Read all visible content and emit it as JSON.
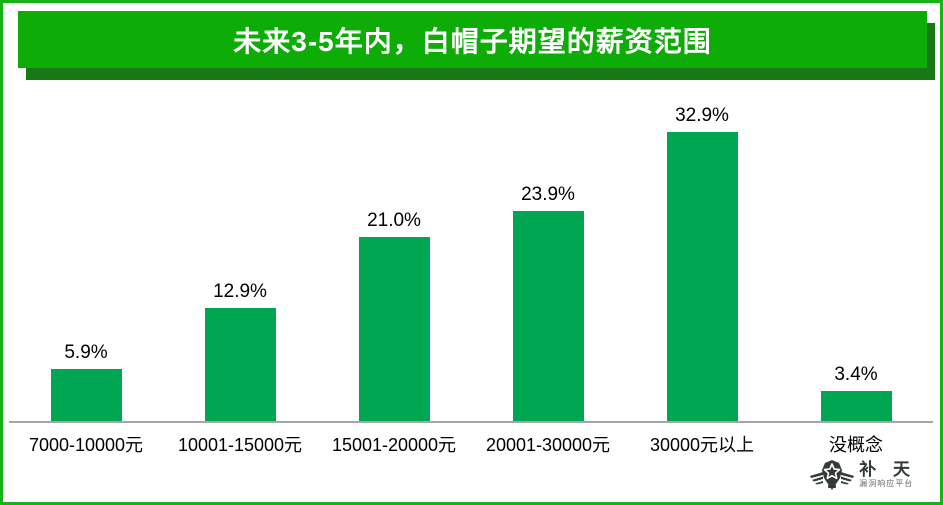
{
  "title": {
    "text": "未来3-5年内，白帽子期望的薪资范围"
  },
  "chart_data": {
    "type": "bar",
    "title": "未来3-5年内，白帽子期望的薪资范围",
    "categories": [
      "7000-10000元",
      "10001-15000元",
      "15001-20000元",
      "20001-30000元",
      "30000元以上",
      "没概念"
    ],
    "values": [
      5.9,
      12.9,
      21.0,
      23.9,
      32.9,
      3.4
    ],
    "value_labels": [
      "5.9%",
      "12.9%",
      "21.0%",
      "23.9%",
      "32.9%",
      "3.4%"
    ],
    "xlabel": "",
    "ylabel": "",
    "ylim": [
      0,
      35
    ],
    "grid": false,
    "legend": false,
    "bar_color": "#00A651",
    "axis_line_color": "#A6A6A6"
  },
  "colors": {
    "banner_green": "#0DAC07",
    "banner_shadow_green": "#177816",
    "page_border_green": "#17B217",
    "bar_green": "#00A651",
    "axis_gray": "#A6A6A6",
    "label_black": "#000000",
    "logo_dark": "#323A3A"
  },
  "logo": {
    "icon": "winged-star-badge-icon",
    "name": "补 天",
    "tagline": "漏洞响应平台"
  }
}
